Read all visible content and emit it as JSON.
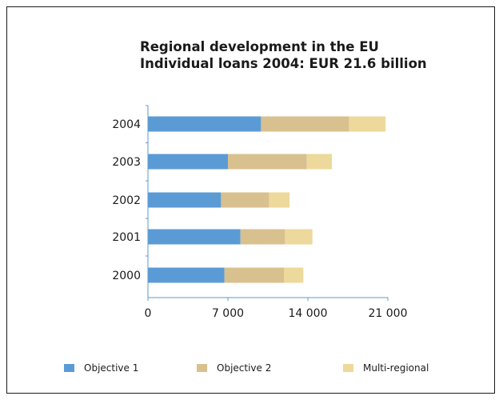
{
  "chart_data": {
    "type": "bar",
    "orientation": "horizontal",
    "stacked": true,
    "title": "Regional development in the EU",
    "subtitle": "Individual loans 2004: EUR 21.6 billion",
    "categories": [
      "2004",
      "2003",
      "2002",
      "2001",
      "2000"
    ],
    "series": [
      {
        "name": "Objective 1",
        "color": "#5b9bd5",
        "values": [
          9900,
          7000,
          6400,
          8100,
          6700
        ]
      },
      {
        "name": "Objective 2",
        "color": "#d9c08f",
        "values": [
          7700,
          6900,
          4200,
          3900,
          5200
        ]
      },
      {
        "name": "Multi-regional",
        "color": "#ecd99b",
        "values": [
          3200,
          2200,
          1800,
          2400,
          1700
        ]
      }
    ],
    "xlim": [
      0,
      21000
    ],
    "xticks": [
      0,
      7000,
      14000,
      21000
    ],
    "xtick_labels": [
      "0",
      "7 000",
      "14 000",
      "21 000"
    ],
    "xlabel": "",
    "ylabel": "",
    "grid": false,
    "legend_position": "bottom"
  }
}
